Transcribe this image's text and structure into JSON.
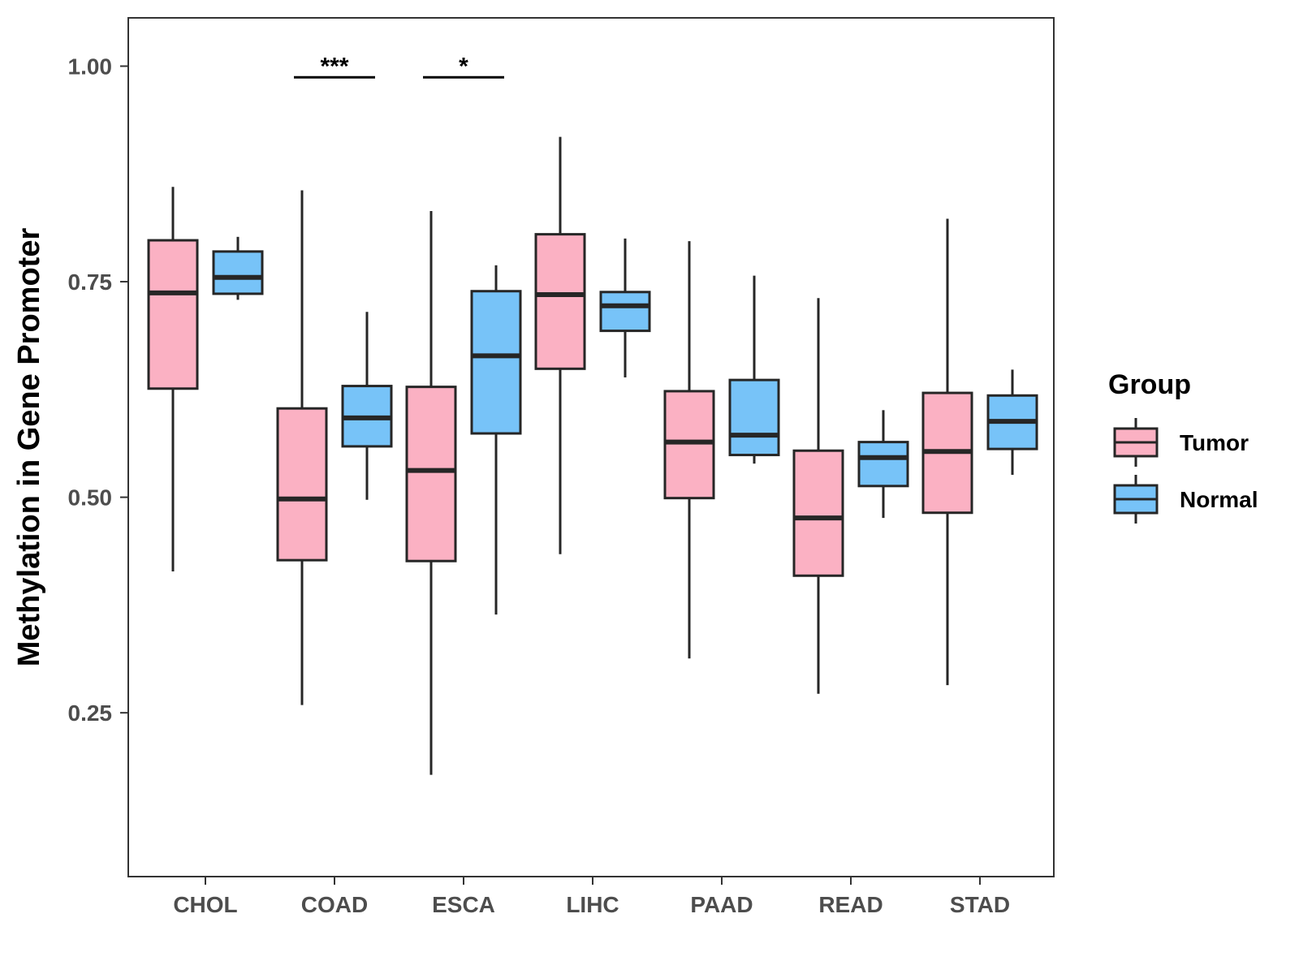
{
  "chart_data": {
    "type": "boxplot",
    "ylabel": "Methylation in Gene Promoter",
    "xlabel": "",
    "ylim": [
      0.06,
      1.056
    ],
    "yticks": [
      0.25,
      0.5,
      0.75,
      1.0
    ],
    "ytick_labels": [
      "0.25",
      "0.50",
      "0.75",
      "1.00"
    ],
    "categories": [
      "CHOL",
      "COAD",
      "ESCA",
      "LIHC",
      "PAAD",
      "READ",
      "STAD"
    ],
    "legend": {
      "title": "Group",
      "position": "right",
      "entries": [
        {
          "name": "Tumor",
          "color": "#FBB1C3"
        },
        {
          "name": "Normal",
          "color": "#77C3F8"
        }
      ]
    },
    "series": [
      {
        "name": "Tumor",
        "color": "#FBB1C3",
        "boxes": [
          {
            "category": "CHOL",
            "min": 0.414,
            "q1": 0.626,
            "median": 0.737,
            "q3": 0.798,
            "max": 0.86
          },
          {
            "category": "COAD",
            "min": 0.259,
            "q1": 0.427,
            "median": 0.498,
            "q3": 0.603,
            "max": 0.856
          },
          {
            "category": "ESCA",
            "min": 0.178,
            "q1": 0.426,
            "median": 0.531,
            "q3": 0.628,
            "max": 0.832
          },
          {
            "category": "LIHC",
            "min": 0.434,
            "q1": 0.649,
            "median": 0.735,
            "q3": 0.805,
            "max": 0.918
          },
          {
            "category": "PAAD",
            "min": 0.313,
            "q1": 0.499,
            "median": 0.564,
            "q3": 0.623,
            "max": 0.797
          },
          {
            "category": "READ",
            "min": 0.272,
            "q1": 0.409,
            "median": 0.476,
            "q3": 0.554,
            "max": 0.731
          },
          {
            "category": "STAD",
            "min": 0.282,
            "q1": 0.482,
            "median": 0.553,
            "q3": 0.621,
            "max": 0.823
          }
        ]
      },
      {
        "name": "Normal",
        "color": "#77C3F8",
        "boxes": [
          {
            "category": "CHOL",
            "min": 0.729,
            "q1": 0.736,
            "median": 0.755,
            "q3": 0.785,
            "max": 0.802
          },
          {
            "category": "COAD",
            "min": 0.497,
            "q1": 0.559,
            "median": 0.592,
            "q3": 0.629,
            "max": 0.715
          },
          {
            "category": "ESCA",
            "min": 0.364,
            "q1": 0.574,
            "median": 0.664,
            "q3": 0.739,
            "max": 0.769
          },
          {
            "category": "LIHC",
            "min": 0.639,
            "q1": 0.693,
            "median": 0.722,
            "q3": 0.738,
            "max": 0.8
          },
          {
            "category": "PAAD",
            "min": 0.539,
            "q1": 0.549,
            "median": 0.572,
            "q3": 0.636,
            "max": 0.757
          },
          {
            "category": "READ",
            "min": 0.476,
            "q1": 0.513,
            "median": 0.546,
            "q3": 0.564,
            "max": 0.601
          },
          {
            "category": "STAD",
            "min": 0.526,
            "q1": 0.556,
            "median": 0.588,
            "q3": 0.618,
            "max": 0.648
          }
        ]
      }
    ],
    "annotations": [
      {
        "category": "COAD",
        "label": "***",
        "y": 0.987
      },
      {
        "category": "ESCA",
        "label": "*",
        "y": 0.987
      }
    ],
    "grid": false
  }
}
